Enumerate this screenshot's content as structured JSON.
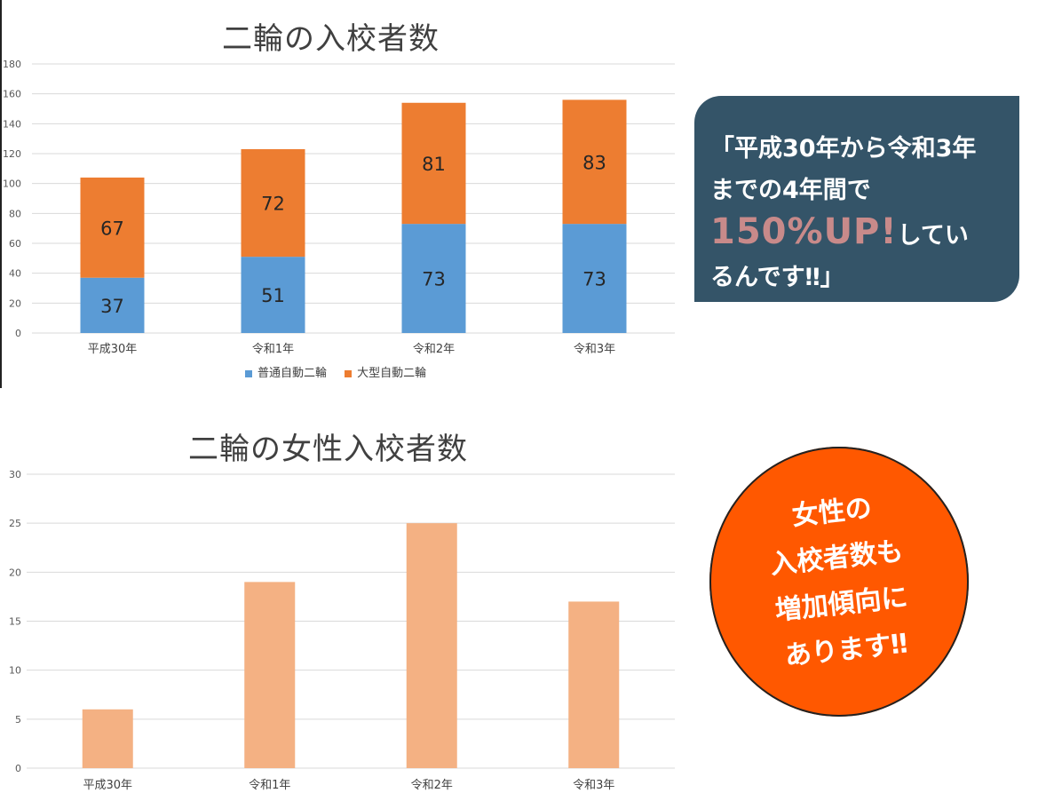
{
  "chart_data": [
    {
      "type": "bar",
      "stacked": true,
      "title": "二輪の入校者数",
      "categories": [
        "平成30年",
        "令和1年",
        "令和2年",
        "令和3年"
      ],
      "series": [
        {
          "name": "普通自動二輪",
          "values": [
            37,
            51,
            73,
            73
          ],
          "color": "#5b9bd5"
        },
        {
          "name": "大型自動二輪",
          "values": [
            67,
            72,
            81,
            83
          ],
          "color": "#ed7d31"
        }
      ],
      "ylim": [
        0,
        180
      ],
      "yticks": [
        0,
        20,
        40,
        60,
        80,
        100,
        120,
        140,
        160,
        180
      ],
      "grid": true,
      "legend": "bottom"
    },
    {
      "type": "bar",
      "title": "二輪の女性入校者数",
      "categories": [
        "平成30年",
        "令和1年",
        "令和2年",
        "令和3年"
      ],
      "series": [
        {
          "values": [
            6,
            19,
            25,
            17
          ],
          "color": "#f4b183"
        }
      ],
      "ylim": [
        0,
        30
      ],
      "yticks": [
        0,
        5,
        10,
        15,
        20,
        25,
        30
      ],
      "grid": true
    }
  ],
  "callout": {
    "line1": "「平成30年から令和3年",
    "line2": "までの4年間で",
    "highlight": "150%UP!",
    "line3_rest": "してい",
    "line4": "るんです‼」"
  },
  "badge": {
    "lines": [
      "女性の",
      "入校者数も",
      "増加傾向に",
      "あります‼"
    ]
  },
  "colors": {
    "callout_bg": "#345468",
    "callout_highlight": "#c88a8a",
    "badge_bg": "#ff5800"
  }
}
